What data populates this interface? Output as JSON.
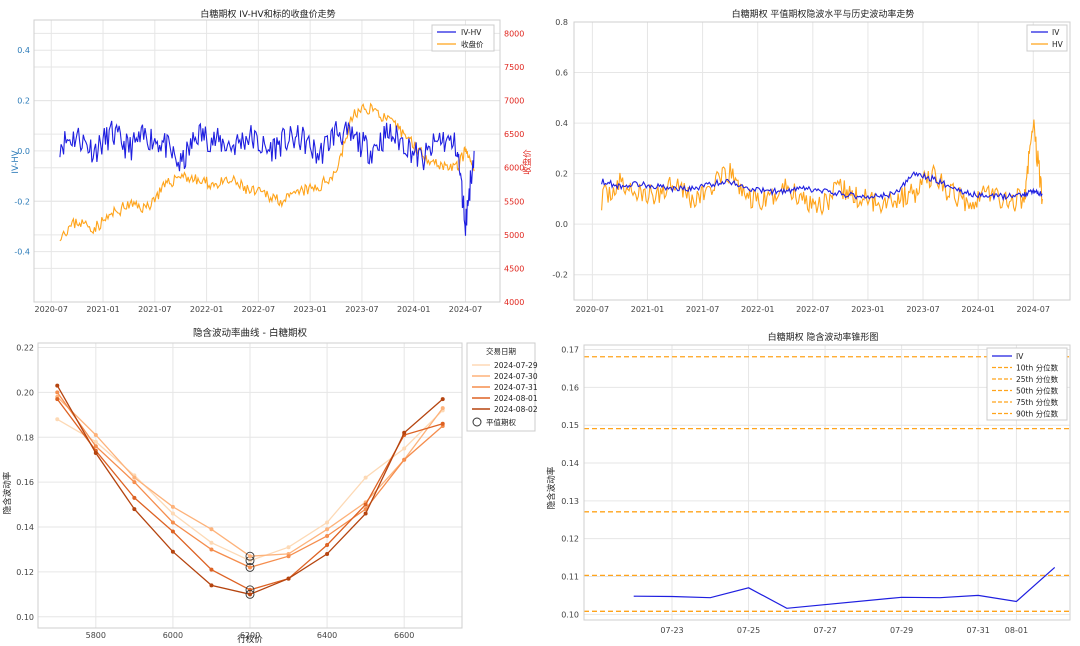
{
  "colors": {
    "iv": "#1f1fe0",
    "close": "#ffa41b",
    "red_axis": "#e0261e",
    "blue_axis": "#2a7ab8",
    "pct": "#ffa41b",
    "grid": "#e6e6e6"
  },
  "chart_data": [
    {
      "type": "line",
      "title": "白糖期权 IV-HV和标的收盘价走势",
      "ylabel_left": "IV-HV",
      "ylabel_right": "收盘价",
      "x_ticks": [
        "2020-07",
        "2021-01",
        "2021-07",
        "2022-01",
        "2022-07",
        "2023-01",
        "2023-07",
        "2024-01",
        "2024-07"
      ],
      "ylim_left": [
        -0.6,
        0.52
      ],
      "ylim_right": [
        4000,
        8200
      ],
      "y_ticks_left": [
        "0.4",
        "0.2",
        "0.0",
        "-0.2",
        "-0.4"
      ],
      "y_ticks_right": [
        "8000",
        "7500",
        "7000",
        "6500",
        "6000",
        "5500",
        "5000",
        "4500",
        "4000"
      ],
      "legend": [
        "IV-HV",
        "收盘价"
      ],
      "series": [
        {
          "name": "IV-HV",
          "x": [
            "2020-08",
            "2020-10",
            "2020-12",
            "2021-02",
            "2021-04",
            "2021-06",
            "2021-08",
            "2021-10",
            "2021-12",
            "2022-02",
            "2022-04",
            "2022-06",
            "2022-08",
            "2022-10",
            "2022-12",
            "2023-02",
            "2023-04",
            "2023-06",
            "2023-08",
            "2023-10",
            "2023-12",
            "2024-02",
            "2024-04",
            "2024-06",
            "2024-07",
            "2024-08"
          ],
          "y": [
            0.03,
            0.06,
            0.0,
            0.07,
            0.01,
            0.06,
            0.03,
            -0.06,
            0.07,
            0.04,
            0.02,
            0.06,
            0.0,
            0.04,
            0.05,
            -0.02,
            0.08,
            0.05,
            0.0,
            0.07,
            0.03,
            -0.04,
            0.05,
            0.02,
            -0.29,
            0.0
          ]
        },
        {
          "name": "收盘价",
          "x": [
            "2020-08",
            "2020-10",
            "2020-12",
            "2021-02",
            "2021-04",
            "2021-06",
            "2021-08",
            "2021-10",
            "2021-12",
            "2022-02",
            "2022-04",
            "2022-06",
            "2022-08",
            "2022-10",
            "2022-12",
            "2023-02",
            "2023-04",
            "2023-06",
            "2023-08",
            "2023-10",
            "2023-12",
            "2024-02",
            "2024-04",
            "2024-06",
            "2024-07",
            "2024-08"
          ],
          "y": [
            5000,
            5200,
            5100,
            5300,
            5450,
            5400,
            5700,
            5900,
            5800,
            5750,
            5800,
            5650,
            5600,
            5500,
            5650,
            5700,
            5950,
            6800,
            6900,
            6700,
            6500,
            6200,
            6050,
            6000,
            6250,
            5950
          ]
        }
      ]
    },
    {
      "type": "line",
      "title": "白糖期权 平值期权隐波水平与历史波动率走势",
      "x_ticks": [
        "2020-07",
        "2021-01",
        "2021-07",
        "2022-01",
        "2022-07",
        "2023-01",
        "2023-07",
        "2024-01",
        "2024-07"
      ],
      "ylim": [
        -0.3,
        0.8
      ],
      "y_ticks": [
        "0.8",
        "0.6",
        "0.4",
        "0.2",
        "0.0",
        "-0.2"
      ],
      "legend": [
        "IV",
        "HV"
      ],
      "series": [
        {
          "name": "IV",
          "x": [
            "2020-08",
            "2020-10",
            "2020-12",
            "2021-02",
            "2021-04",
            "2021-06",
            "2021-08",
            "2021-10",
            "2021-12",
            "2022-02",
            "2022-04",
            "2022-06",
            "2022-08",
            "2022-10",
            "2022-12",
            "2023-02",
            "2023-04",
            "2023-06",
            "2023-08",
            "2023-10",
            "2023-12",
            "2024-02",
            "2024-04",
            "2024-06",
            "2024-07",
            "2024-08"
          ],
          "y": [
            0.17,
            0.15,
            0.16,
            0.15,
            0.14,
            0.14,
            0.16,
            0.17,
            0.14,
            0.13,
            0.13,
            0.14,
            0.13,
            0.12,
            0.11,
            0.11,
            0.12,
            0.2,
            0.18,
            0.15,
            0.12,
            0.11,
            0.11,
            0.12,
            0.13,
            0.12
          ]
        },
        {
          "name": "HV",
          "x": [
            "2020-08",
            "2020-10",
            "2020-12",
            "2021-02",
            "2021-04",
            "2021-06",
            "2021-08",
            "2021-10",
            "2021-12",
            "2022-02",
            "2022-04",
            "2022-06",
            "2022-08",
            "2022-10",
            "2022-12",
            "2023-02",
            "2023-04",
            "2023-06",
            "2023-08",
            "2023-10",
            "2023-12",
            "2024-02",
            "2024-04",
            "2024-06",
            "2024-07",
            "2024-08"
          ],
          "y": [
            0.1,
            0.16,
            0.12,
            0.11,
            0.18,
            0.09,
            0.15,
            0.2,
            0.1,
            0.09,
            0.15,
            0.1,
            0.08,
            0.14,
            0.1,
            0.09,
            0.1,
            0.12,
            0.2,
            0.12,
            0.09,
            0.13,
            0.09,
            0.1,
            0.4,
            0.1
          ]
        }
      ]
    },
    {
      "type": "line",
      "title": "隐含波动率曲线 - 白糖期权",
      "xlabel": "行权价",
      "ylabel": "隐含波动率",
      "x_ticks": [
        "5800",
        "6000",
        "6200",
        "6400",
        "6600"
      ],
      "xlim": [
        5650,
        6750
      ],
      "ylim": [
        0.095,
        0.222
      ],
      "y_ticks": [
        "0.22",
        "0.20",
        "0.18",
        "0.16",
        "0.14",
        "0.12",
        "0.10"
      ],
      "legend_title": "交易日期",
      "legend_atm": "平值期权",
      "strikes": [
        5700,
        5800,
        5900,
        6000,
        6100,
        6200,
        6300,
        6400,
        6500,
        6600,
        6700
      ],
      "atm_strike": 6200,
      "series": [
        {
          "name": "2024-07-29",
          "values": [
            0.188,
            0.178,
            0.163,
            0.146,
            0.133,
            0.125,
            0.131,
            0.142,
            0.162,
            0.175,
            0.192
          ]
        },
        {
          "name": "2024-07-30",
          "values": [
            0.198,
            0.181,
            0.162,
            0.149,
            0.139,
            0.127,
            0.128,
            0.139,
            0.151,
            0.17,
            0.193
          ]
        },
        {
          "name": "2024-07-31",
          "values": [
            0.2,
            0.176,
            0.16,
            0.142,
            0.13,
            0.122,
            0.127,
            0.136,
            0.148,
            0.17,
            0.185
          ]
        },
        {
          "name": "2024-08-01",
          "values": [
            0.197,
            0.174,
            0.153,
            0.138,
            0.121,
            0.112,
            0.117,
            0.132,
            0.15,
            0.181,
            0.186
          ]
        },
        {
          "name": "2024-08-02",
          "values": [
            0.203,
            0.173,
            0.148,
            0.129,
            0.114,
            0.11,
            0.117,
            0.128,
            0.146,
            0.182,
            0.197
          ]
        }
      ]
    },
    {
      "type": "line",
      "title": "白糖期权 隐含波动率锥形图",
      "ylabel": "隐含波动率",
      "x_ticks": [
        "07-23",
        "07-25",
        "07-27",
        "07-29",
        "07-31",
        "08-01"
      ],
      "ylim": [
        0.0985,
        0.1712
      ],
      "y_ticks": [
        "0.17",
        "0.16",
        "0.15",
        "0.14",
        "0.13",
        "0.12",
        "0.11",
        "0.10"
      ],
      "legend": [
        "IV",
        "10th 分位数",
        "25th 分位数",
        "50th 分位数",
        "75th 分位数",
        "90th 分位数"
      ],
      "percentiles": [
        0.1008,
        0.1103,
        0.1271,
        0.1491,
        0.1681
      ],
      "series": [
        {
          "name": "IV",
          "x": [
            "07-22",
            "07-23",
            "07-24",
            "07-25",
            "07-26",
            "07-29",
            "07-30",
            "07-31",
            "08-01",
            "08-02"
          ],
          "y": [
            0.1048,
            0.1047,
            0.1044,
            0.107,
            0.1016,
            0.1045,
            0.1044,
            0.105,
            0.1034,
            0.1124
          ]
        }
      ]
    }
  ]
}
